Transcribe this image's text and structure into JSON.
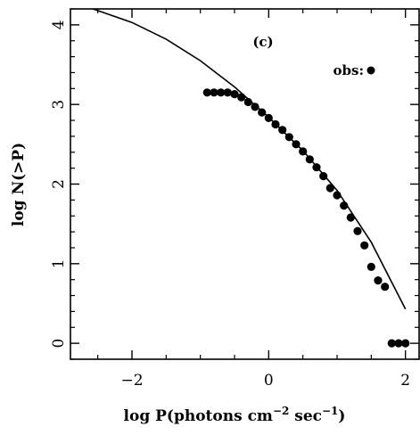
{
  "chart_data": {
    "type": "scatter",
    "panel_label": "(c)",
    "xlabel_prefix": "log P(photons cm",
    "xlabel_exp1": "−2",
    "xlabel_mid": " sec",
    "xlabel_exp2": "−1",
    "xlabel_suffix": ")",
    "ylabel": "log N(>P)",
    "xlim": [
      -2.9,
      2.2
    ],
    "ylim": [
      -0.2,
      4.2
    ],
    "x_ticks": [
      -2,
      0,
      2
    ],
    "x_tick_labels": [
      "−2",
      "0",
      "2"
    ],
    "y_ticks": [
      0,
      1,
      2,
      3,
      4
    ],
    "y_tick_labels": [
      "0",
      "1",
      "2",
      "3",
      "4"
    ],
    "legend": {
      "label": "obs:",
      "marker": "filled-circle",
      "placement": "top-right"
    },
    "series": [
      {
        "name": "obs",
        "style": "points",
        "color": "#000000",
        "x": [
          -0.9,
          -0.8,
          -0.7,
          -0.6,
          -0.5,
          -0.4,
          -0.3,
          -0.2,
          -0.1,
          0.0,
          0.1,
          0.2,
          0.3,
          0.4,
          0.5,
          0.6,
          0.7,
          0.8,
          0.9,
          1.0,
          1.1,
          1.2,
          1.3,
          1.4,
          1.5,
          1.6,
          1.7,
          1.8,
          1.9,
          2.0
        ],
        "y": [
          3.15,
          3.15,
          3.15,
          3.15,
          3.13,
          3.09,
          3.03,
          2.97,
          2.9,
          2.83,
          2.75,
          2.68,
          2.59,
          2.5,
          2.41,
          2.31,
          2.21,
          2.1,
          1.95,
          1.86,
          1.73,
          1.58,
          1.41,
          1.23,
          0.96,
          0.79,
          0.71,
          0.0,
          0.0,
          0.0
        ]
      },
      {
        "name": "model",
        "style": "line",
        "color": "#000000",
        "x": [
          -2.57,
          -2.0,
          -1.5,
          -1.0,
          -0.5,
          0.0,
          0.5,
          1.0,
          1.5,
          2.0
        ],
        "y": [
          4.2,
          4.03,
          3.82,
          3.55,
          3.22,
          2.84,
          2.42,
          1.92,
          1.27,
          0.43
        ]
      }
    ]
  }
}
